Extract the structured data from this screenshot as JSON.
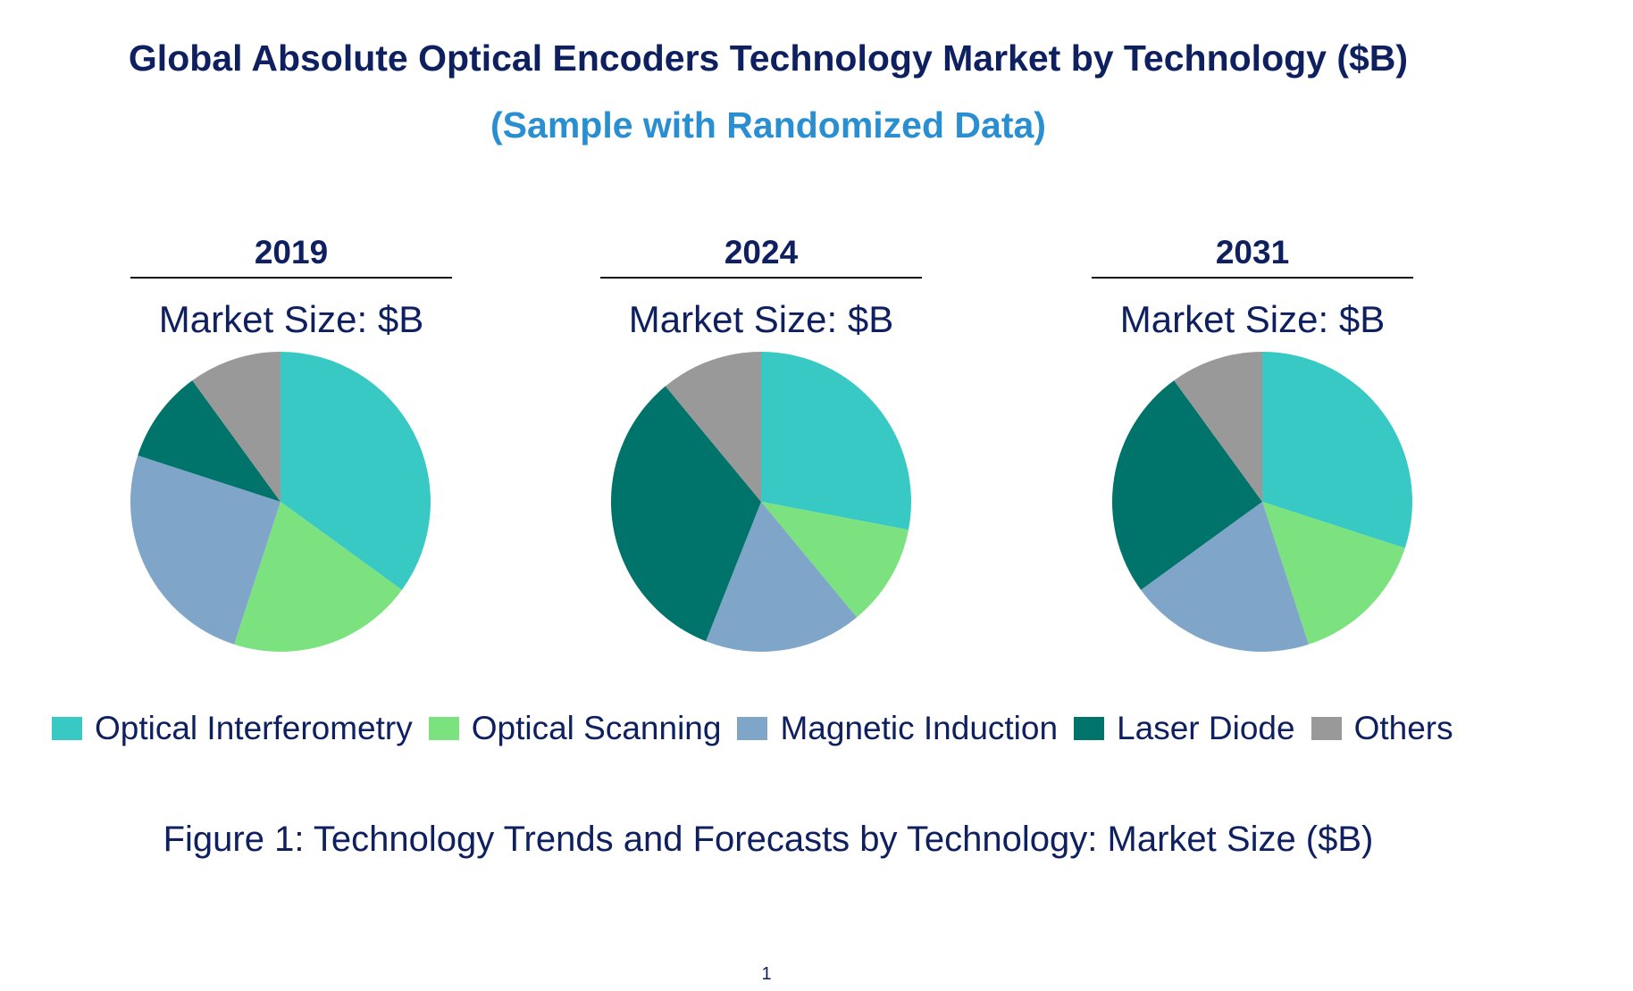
{
  "title": "Global Absolute Optical Encoders Technology Market by Technology ($B)",
  "subtitle": "(Sample with Randomized Data)",
  "caption": "Figure 1: Technology Trends and Forecasts by Technology: Market Size ($B)",
  "page_number": "1",
  "chart_data": {
    "type": "pie",
    "categories": [
      "Optical Interferometry",
      "Optical Scanning",
      "Magnetic Induction",
      "Laser Diode",
      "Others"
    ],
    "colors": [
      "#38c9c4",
      "#7be27f",
      "#7fa5c9",
      "#00736a",
      "#999999"
    ],
    "charts": [
      {
        "year": "2019",
        "market_size_label": "Market Size: $B",
        "values": [
          35,
          20,
          25,
          10,
          10
        ]
      },
      {
        "year": "2024",
        "market_size_label": "Market Size: $B",
        "values": [
          28,
          11,
          17,
          33,
          11
        ]
      },
      {
        "year": "2031",
        "market_size_label": "Market Size: $B",
        "values": [
          30,
          15,
          20,
          25,
          10
        ]
      }
    ]
  }
}
